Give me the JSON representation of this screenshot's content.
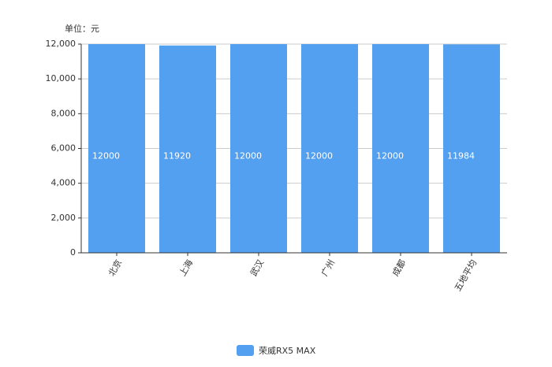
{
  "chart_data": {
    "type": "bar",
    "unit_label": "单位：元",
    "categories": [
      "北京",
      "上海",
      "武汉",
      "广州",
      "成都",
      "五地平均"
    ],
    "series": [
      {
        "name": "荣威RX5 MAX",
        "color": "#539ff0",
        "values": [
          12000,
          11920,
          12000,
          12000,
          12000,
          11984
        ]
      }
    ],
    "ylim": [
      0,
      12000
    ],
    "yticks": [
      0,
      {
        "value": 2000,
        "label": "2,000"
      },
      {
        "value": 4000,
        "label": "4,000"
      },
      {
        "value": 6000,
        "label": "6,000"
      },
      {
        "value": 8000,
        "label": "8,000"
      },
      {
        "value": 10000,
        "label": "10,000"
      },
      {
        "value": 12000,
        "label": "12,000"
      }
    ],
    "grid": true
  }
}
